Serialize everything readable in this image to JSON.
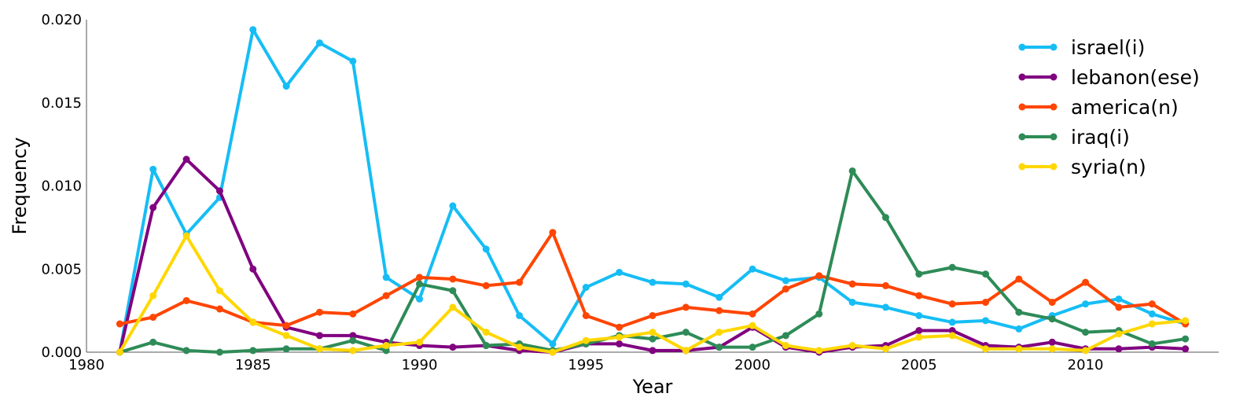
{
  "chart_data": {
    "type": "line",
    "xlabel": "Year",
    "ylabel": "Frequency",
    "xlim": [
      1980,
      2014
    ],
    "ylim": [
      0,
      0.02
    ],
    "x_ticks": [
      "1980",
      "1985",
      "1990",
      "1995",
      "2000",
      "2005",
      "2010"
    ],
    "y_ticks": [
      "0.000",
      "0.005",
      "0.010",
      "0.015",
      "0.020"
    ],
    "grid": false,
    "legend_position": "top-right",
    "x": [
      1981,
      1982,
      1983,
      1984,
      1985,
      1986,
      1987,
      1988,
      1989,
      1990,
      1991,
      1992,
      1993,
      1994,
      1995,
      1996,
      1997,
      1998,
      1999,
      2000,
      2001,
      2002,
      2003,
      2004,
      2005,
      2006,
      2007,
      2008,
      2009,
      2010,
      2011,
      2012,
      2013
    ],
    "series": [
      {
        "name": "israel(i)",
        "color": "#16bdf5",
        "values": [
          0.0,
          0.011,
          0.0071,
          0.0093,
          0.0194,
          0.016,
          0.0186,
          0.0175,
          0.0045,
          0.0032,
          0.0088,
          0.0062,
          0.0022,
          0.0005,
          0.0039,
          0.0048,
          0.0042,
          0.0041,
          0.0033,
          0.005,
          0.0043,
          0.0045,
          0.003,
          0.0027,
          0.0022,
          0.0018,
          0.0019,
          0.0014,
          0.0022,
          0.0029,
          0.0032,
          0.0023,
          0.0017
        ]
      },
      {
        "name": "lebanon(ese)",
        "color": "#800080",
        "values": [
          0.0,
          0.0087,
          0.0116,
          0.0097,
          0.005,
          0.0015,
          0.001,
          0.001,
          0.0006,
          0.0004,
          0.0003,
          0.0004,
          0.0001,
          0.0,
          0.0005,
          0.0005,
          0.0001,
          0.0001,
          0.0003,
          0.0015,
          0.0003,
          0.0,
          0.0003,
          0.0004,
          0.0013,
          0.0013,
          0.0004,
          0.0003,
          0.0006,
          0.0002,
          0.0002,
          0.0003,
          0.0002
        ]
      },
      {
        "name": "america(n)",
        "color": "#ff4500",
        "values": [
          0.0017,
          0.0021,
          0.0031,
          0.0026,
          0.0018,
          0.0016,
          0.0024,
          0.0023,
          0.0034,
          0.0045,
          0.0044,
          0.004,
          0.0042,
          0.0072,
          0.0022,
          0.0015,
          0.0022,
          0.0027,
          0.0025,
          0.0023,
          0.0038,
          0.0046,
          0.0041,
          0.004,
          0.0034,
          0.0029,
          0.003,
          0.0044,
          0.003,
          0.0042,
          0.0027,
          0.0029,
          0.0017
        ]
      },
      {
        "name": "iraq(i)",
        "color": "#2e8b57",
        "values": [
          0.0,
          0.0006,
          0.0001,
          0.0,
          0.0001,
          0.0002,
          0.0002,
          0.0007,
          0.0001,
          0.0041,
          0.0037,
          0.0004,
          0.0005,
          0.0001,
          0.0005,
          0.001,
          0.0008,
          0.0012,
          0.0003,
          0.0003,
          0.001,
          0.0023,
          0.0109,
          0.0081,
          0.0047,
          0.0051,
          0.0047,
          0.0024,
          0.002,
          0.0012,
          0.0013,
          0.0005,
          0.0008
        ]
      },
      {
        "name": "syria(n)",
        "color": "#ffd700",
        "values": [
          0.0,
          0.0034,
          0.007,
          0.0037,
          0.0018,
          0.001,
          0.0002,
          0.0001,
          0.0004,
          0.0006,
          0.0027,
          0.0012,
          0.0003,
          0.0,
          0.0007,
          0.0009,
          0.0012,
          0.0001,
          0.0012,
          0.0016,
          0.0004,
          0.0001,
          0.0004,
          0.0002,
          0.0009,
          0.001,
          0.0002,
          0.0002,
          0.0002,
          0.0001,
          0.0011,
          0.0017,
          0.0019
        ]
      }
    ]
  }
}
